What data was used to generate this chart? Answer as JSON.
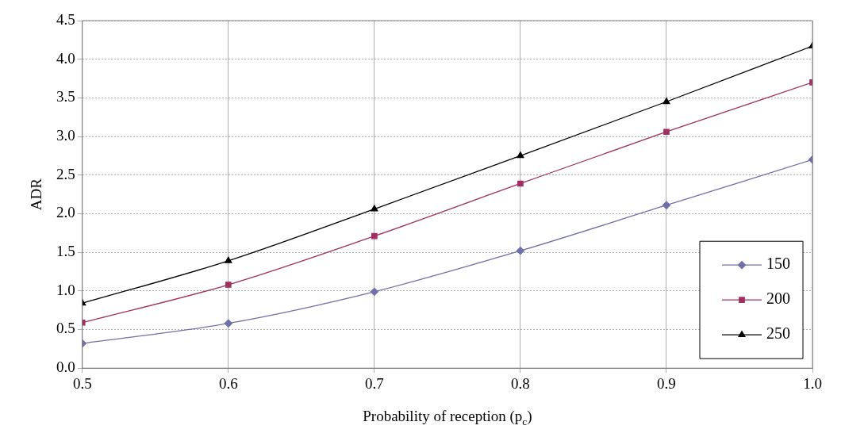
{
  "chart_data": {
    "type": "line",
    "xlabel": "Probability of reception (p$_{c}$)",
    "ylabel": "ADR",
    "x": [
      0.5,
      0.6,
      0.7,
      0.8,
      0.9,
      1.0
    ],
    "xlim": [
      0.5,
      1.0
    ],
    "xticks": [
      {
        "value": 0.5,
        "label": "0.5"
      },
      {
        "value": 0.6,
        "label": "0.6"
      },
      {
        "value": 0.7,
        "label": "0.7"
      },
      {
        "value": 0.8,
        "label": "0.8"
      },
      {
        "value": 0.9,
        "label": "0.9"
      },
      {
        "value": 1.0,
        "label": "1.0"
      }
    ],
    "ylim": [
      0,
      4.5
    ],
    "yticks": [
      {
        "value": 0,
        "label": "0.0"
      },
      {
        "value": 0.5,
        "label": "0.5"
      },
      {
        "value": 1,
        "label": "1.0"
      },
      {
        "value": 1.5,
        "label": "1.5"
      },
      {
        "value": 2,
        "label": "2.0"
      },
      {
        "value": 2.5,
        "label": "2.5"
      },
      {
        "value": 3,
        "label": "3.0"
      },
      {
        "value": 3.5,
        "label": "3.5"
      },
      {
        "value": 4,
        "label": "4.0"
      },
      {
        "value": 4.5,
        "label": "4.5"
      }
    ],
    "grid": true,
    "legend": "bottom right",
    "series": [
      {
        "name": "150",
        "color": "#7070a8",
        "marker": "diamond",
        "values": [
          0.32,
          0.58,
          0.99,
          1.52,
          2.11,
          2.7
        ]
      },
      {
        "name": "200",
        "color": "#a0305f",
        "marker": "square",
        "values": [
          0.59,
          1.08,
          1.71,
          2.39,
          3.06,
          3.7
        ]
      },
      {
        "name": "250",
        "color": "#000000",
        "marker": "triangle",
        "values": [
          0.84,
          1.39,
          2.06,
          2.75,
          3.45,
          4.17
        ]
      }
    ]
  }
}
